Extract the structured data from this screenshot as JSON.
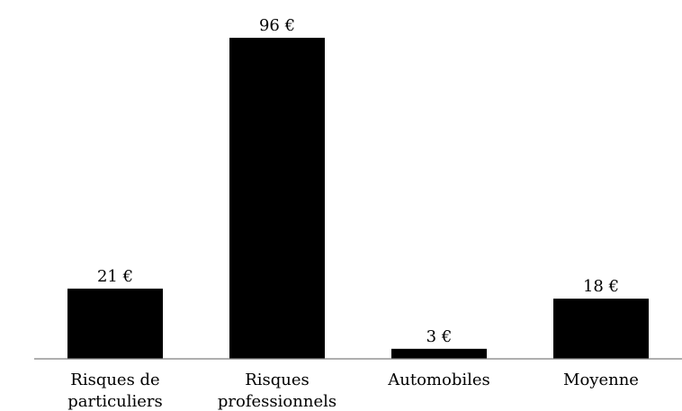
{
  "chart_data": {
    "type": "bar",
    "categories": [
      [
        "Risques de",
        "particuliers"
      ],
      [
        "Risques",
        "professionnels"
      ],
      [
        "Automobiles"
      ],
      [
        "Moyenne"
      ]
    ],
    "values": [
      21,
      96,
      3,
      18
    ],
    "data_labels": [
      "21 €",
      "96 €",
      "3 €",
      "18 €"
    ],
    "title": "",
    "xlabel": "",
    "ylabel": "",
    "ylim": [
      0,
      96
    ],
    "grid": false,
    "legend": "none",
    "bar_color": "#000000"
  }
}
